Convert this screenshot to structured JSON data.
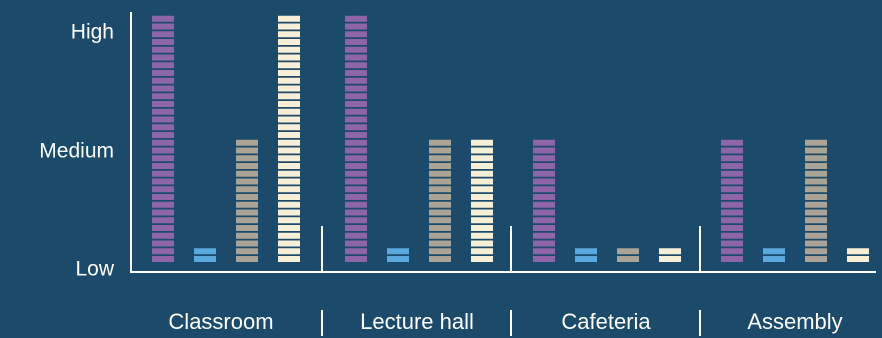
{
  "colors": {
    "background": "#1b4a6b",
    "axis": "#ffffff",
    "series": [
      "#8d65a8",
      "#5aa9dd",
      "#aaa396",
      "#f8f0d6"
    ]
  },
  "chart_data": {
    "type": "bar",
    "style": "stacked-segment columns (each column built from small horizontal blocks)",
    "title": "",
    "xlabel": "",
    "ylabel": "",
    "y_tick_labels": [
      "Low",
      "Medium",
      "High"
    ],
    "y_scale": {
      "Low": 0,
      "Medium": 1,
      "High": 2
    },
    "ylim": [
      0,
      2
    ],
    "categories": [
      "Classroom",
      "Lecture hall",
      "Cafeteria",
      "Assembly"
    ],
    "series": [
      {
        "values": [
          2.0,
          2.0,
          1.0,
          1.0
        ]
      },
      {
        "values": [
          0.1,
          0.1,
          0.1,
          0.1
        ]
      },
      {
        "values": [
          1.0,
          1.0,
          0.1,
          1.0
        ]
      },
      {
        "values": [
          2.0,
          1.0,
          0.1,
          0.1
        ]
      }
    ],
    "legend": "none",
    "grid": false
  }
}
